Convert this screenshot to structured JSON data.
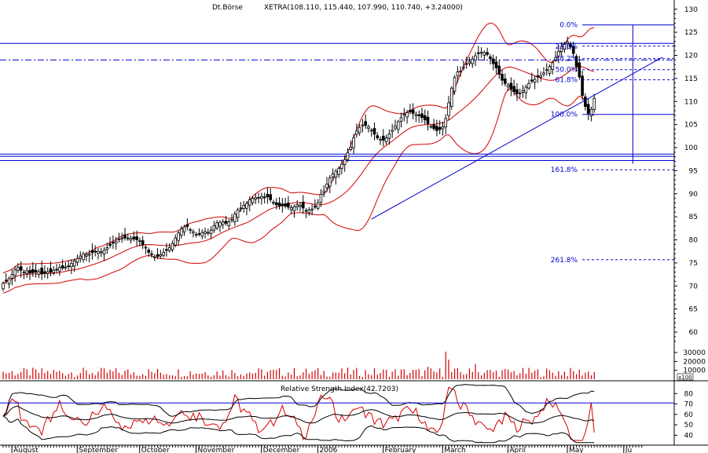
{
  "chart_data": {
    "type": "candlestick",
    "header": {
      "symbol": "Dt.Börse",
      "quote": "XETRA(108.110, 115.440, 107.990, 110.740, +3.24000)"
    },
    "price_axis": {
      "ylim": [
        52,
        132
      ],
      "ticks": [
        60,
        65,
        70,
        75,
        80,
        85,
        90,
        95,
        100,
        105,
        110,
        115,
        120,
        125,
        130
      ]
    },
    "volume_axis": {
      "ylim": [
        0,
        38000
      ],
      "ticks": [
        10000,
        20000,
        30000
      ],
      "tick_labels": [
        "10000",
        "20000",
        "30000"
      ],
      "unit_label": "x100"
    },
    "rsi_axis": {
      "title": "Relative Strength Index(42.7203)",
      "ylim": [
        32,
        90
      ],
      "ticks": [
        40,
        50,
        60,
        70,
        80
      ],
      "level_line": 71
    },
    "x_axis": {
      "months": [
        {
          "label": "August",
          "i": 4
        },
        {
          "label": "September",
          "i": 26
        },
        {
          "label": "October",
          "i": 47
        },
        {
          "label": "November",
          "i": 66
        },
        {
          "label": "December",
          "i": 88
        },
        {
          "label": "2006",
          "i": 107
        },
        {
          "label": "February",
          "i": 129
        },
        {
          "label": "March",
          "i": 149
        },
        {
          "label": "April",
          "i": 171
        },
        {
          "label": "May",
          "i": 191
        },
        {
          "label": "Ju",
          "i": 210
        }
      ]
    },
    "closes": [
      70.6,
      71.2,
      71.6,
      72.5,
      73.5,
      74,
      73.4,
      73,
      73.3,
      72.8,
      72.9,
      73,
      73.1,
      72.6,
      72.8,
      73.1,
      73,
      73.4,
      73.5,
      74,
      73.9,
      74.1,
      74.3,
      74.9,
      75.4,
      76,
      76.5,
      77,
      76.8,
      76.9,
      77.2,
      77.4,
      77.5,
      77.4,
      77.8,
      78.3,
      78.8,
      79.3,
      79.7,
      80.2,
      80.4,
      80.4,
      80.4,
      80.3,
      80.2,
      80,
      79.8,
      78.9,
      78.4,
      77.3,
      76.8,
      76.3,
      76.4,
      76.8,
      77.3,
      77.7,
      78.3,
      79.2,
      80.4,
      81.5,
      82.4,
      82.8,
      82.9,
      82.2,
      81.8,
      81.2,
      81.2,
      81.6,
      81.8,
      81.6,
      82.1,
      83.1,
      83.7,
      83.8,
      83.9,
      83.6,
      83.9,
      84.4,
      85.6,
      86.5,
      86.9,
      87.5,
      87.9,
      88.7,
      89,
      89.2,
      89.2,
      89.4,
      89.2,
      89.3,
      88.7,
      88,
      87.6,
      87.3,
      87.4,
      87.3,
      87.1,
      87,
      87.2,
      87.6,
      87.5,
      86.9,
      86.4,
      86.5,
      86.7,
      87.1,
      88,
      89.9,
      90.6,
      92.1,
      93.4,
      94.3,
      94.9,
      95.5,
      96.4,
      97.4,
      98.9,
      100.1,
      102.1,
      103.6,
      104.4,
      104.9,
      104.8,
      104.5,
      103.8,
      102.9,
      102.1,
      101.8,
      101.6,
      102.1,
      103,
      103.8,
      104.7,
      105.6,
      106.5,
      107.2,
      107.6,
      107.7,
      107.4,
      107.2,
      106.9,
      106.5,
      106,
      105.2,
      104.6,
      104.1,
      103.7,
      103.9,
      104.5,
      106.3,
      109.7,
      112.9,
      115.2,
      116.4,
      116.6,
      117.4,
      118.2,
      118.6,
      119.2,
      119.9,
      120.4,
      120.7,
      120.6,
      120.2,
      119.3,
      118.2,
      117.3,
      115.9,
      114.6,
      113.9,
      113.6,
      112.7,
      112.1,
      111.7,
      111.8,
      112.4,
      113.1,
      113.9,
      114.4,
      114.8,
      115.3,
      115.6,
      116.2,
      116.9,
      117.6,
      118.4,
      119.5,
      120.9,
      121.9,
      122.4,
      122.9,
      121.8,
      120.4,
      117.6,
      115.3,
      111.3,
      108.9,
      107.4,
      108.3,
      110.7
    ],
    "volume_spikes": [
      {
        "i": 149,
        "v": 31000
      },
      {
        "i": 150,
        "v": 22000
      },
      {
        "i": 143,
        "v": 14000
      },
      {
        "i": 159,
        "v": 17000
      },
      {
        "i": 212,
        "v": 28000
      },
      {
        "i": 210,
        "v": 22000
      },
      {
        "i": 204,
        "v": 24000
      }
    ],
    "horizontal_lines": [
      {
        "value": 122.6,
        "style": "solid"
      },
      {
        "value": 119,
        "style": "dashdot"
      },
      {
        "value": 98.6,
        "style": "solid"
      },
      {
        "value": 98.1,
        "style": "solid"
      },
      {
        "value": 97.2,
        "style": "solid"
      }
    ],
    "trendline": {
      "from": [
        124,
        84.5
      ],
      "to": [
        222,
        119.6
      ]
    },
    "fibonacci": {
      "x_start": 195,
      "levels": [
        {
          "label": "0.0%",
          "value": 126.6
        },
        {
          "label": "23.6%",
          "value": 122
        },
        {
          "label": "38.2%",
          "value": 119.3
        },
        {
          "label": "50.0%",
          "value": 116.9
        },
        {
          "label": "61.8%",
          "value": 114.7
        },
        {
          "label": "100.0%",
          "value": 107.2
        },
        {
          "label": "161.8%",
          "value": 95.2
        },
        {
          "label": "261.8%",
          "value": 75.7
        }
      ]
    },
    "colors": {
      "axis": "#000000",
      "line": "#0000cc",
      "bands": "#d40000",
      "bull": "#ffffff",
      "bear": "#000000",
      "volume": "#d40000",
      "fib_text": "#0000cc"
    }
  }
}
